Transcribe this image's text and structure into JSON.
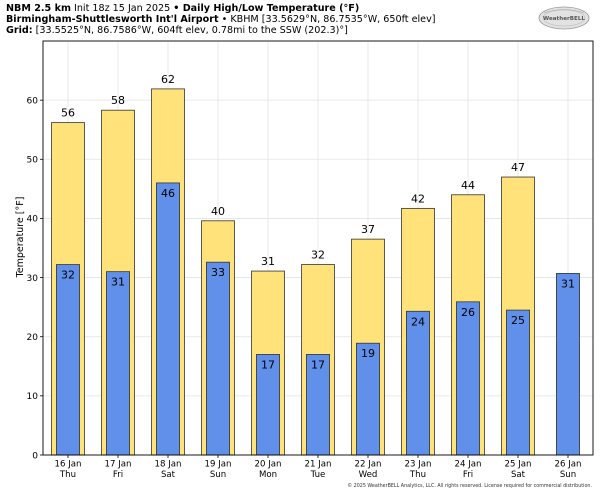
{
  "header": {
    "line1_bold_a": "NBM 2.5 km",
    "line1_plain": " Init 18z 15 Jan 2025 ",
    "line1_bold_b": "• Daily High/Low Temperature (°F)",
    "line2_bold": "Birmingham-Shuttlesworth Int'l Airport",
    "line2_plain": " • KBHM [33.5629°N, 86.7535°W, 650ft elev]",
    "line3_bold": "Grid:",
    "line3_plain": " [33.5525°N, 86.7586°W, 604ft elev, 0.78mi to the SSW (202.3)°]"
  },
  "logo": {
    "text": "WeatherBELL"
  },
  "copyright": "© 2025 WeatherBELL Analytics, LLC. All rights reserved. License required for commercial distribution.",
  "chart_data": {
    "type": "bar",
    "ylabel": "Temperature [°F]",
    "ylim": [
      0,
      70
    ],
    "yticks": [
      0,
      10,
      20,
      30,
      40,
      50,
      60
    ],
    "grid": true,
    "categories": [
      {
        "date": "16 Jan",
        "day": "Thu"
      },
      {
        "date": "17 Jan",
        "day": "Fri"
      },
      {
        "date": "18 Jan",
        "day": "Sat"
      },
      {
        "date": "19 Jan",
        "day": "Sun"
      },
      {
        "date": "20 Jan",
        "day": "Mon"
      },
      {
        "date": "21 Jan",
        "day": "Tue"
      },
      {
        "date": "22 Jan",
        "day": "Wed"
      },
      {
        "date": "23 Jan",
        "day": "Thu"
      },
      {
        "date": "24 Jan",
        "day": "Fri"
      },
      {
        "date": "25 Jan",
        "day": "Sat"
      },
      {
        "date": "26 Jan",
        "day": "Sun"
      }
    ],
    "series": [
      {
        "role": "high",
        "color": "#ffe27a",
        "raw": [
          56.2,
          58.3,
          61.9,
          39.6,
          31.1,
          32.2,
          36.5,
          41.7,
          44.0,
          47.0,
          null
        ],
        "labels": [
          "56",
          "58",
          "62",
          "40",
          "31",
          "32",
          "37",
          "42",
          "44",
          "47",
          null
        ]
      },
      {
        "role": "low",
        "color": "#6190eb",
        "raw": [
          32.2,
          31.0,
          46.0,
          32.6,
          17.0,
          17.0,
          18.9,
          24.3,
          25.9,
          24.5,
          30.7
        ],
        "labels": [
          "32",
          "31",
          "46",
          "33",
          "17",
          "17",
          "19",
          "24",
          "26",
          "25",
          "31"
        ]
      }
    ]
  }
}
